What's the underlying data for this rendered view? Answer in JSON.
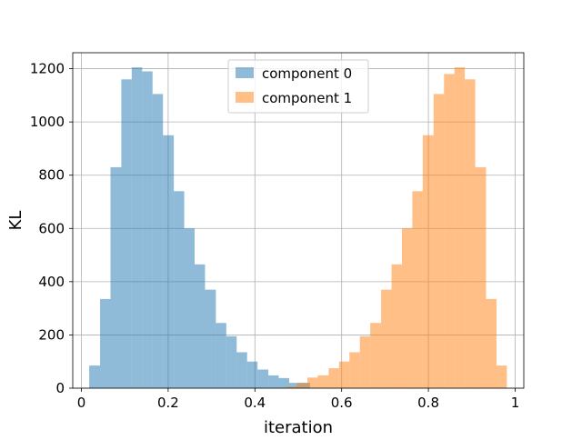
{
  "chart_data": {
    "type": "bar",
    "title": "",
    "xlabel": "iteration",
    "ylabel": "KL",
    "xlim": [
      -0.02,
      1.02
    ],
    "ylim": [
      0,
      1260
    ],
    "grid": true,
    "legend_position": "top-center",
    "xticks": [
      0,
      0.2,
      0.4,
      0.6,
      0.8,
      1
    ],
    "xtick_labels": [
      "0",
      "0.2",
      "0.4",
      "0.6",
      "0.8",
      "1"
    ],
    "yticks": [
      0,
      200,
      400,
      600,
      800,
      1000,
      1200
    ],
    "ytick_labels": [
      "0",
      "200",
      "400",
      "600",
      "800",
      "1000",
      "1200"
    ],
    "series": [
      {
        "name": "component 0",
        "color": "#1f77b4",
        "alpha": 0.5,
        "bins": [
          {
            "x0": 0.018,
            "x1": 0.043,
            "y": 85
          },
          {
            "x0": 0.043,
            "x1": 0.067,
            "y": 335
          },
          {
            "x0": 0.067,
            "x1": 0.092,
            "y": 830
          },
          {
            "x0": 0.092,
            "x1": 0.116,
            "y": 1160
          },
          {
            "x0": 0.116,
            "x1": 0.14,
            "y": 1205
          },
          {
            "x0": 0.14,
            "x1": 0.164,
            "y": 1190
          },
          {
            "x0": 0.164,
            "x1": 0.188,
            "y": 1105
          },
          {
            "x0": 0.188,
            "x1": 0.213,
            "y": 950
          },
          {
            "x0": 0.213,
            "x1": 0.237,
            "y": 740
          },
          {
            "x0": 0.237,
            "x1": 0.261,
            "y": 600
          },
          {
            "x0": 0.261,
            "x1": 0.285,
            "y": 465
          },
          {
            "x0": 0.285,
            "x1": 0.31,
            "y": 370
          },
          {
            "x0": 0.31,
            "x1": 0.334,
            "y": 245
          },
          {
            "x0": 0.334,
            "x1": 0.358,
            "y": 195
          },
          {
            "x0": 0.358,
            "x1": 0.382,
            "y": 135
          },
          {
            "x0": 0.382,
            "x1": 0.406,
            "y": 100
          },
          {
            "x0": 0.406,
            "x1": 0.431,
            "y": 70
          },
          {
            "x0": 0.431,
            "x1": 0.455,
            "y": 48
          },
          {
            "x0": 0.455,
            "x1": 0.479,
            "y": 38
          },
          {
            "x0": 0.479,
            "x1": 0.503,
            "y": 20
          },
          {
            "x0": 0.503,
            "x1": 0.527,
            "y": 20
          }
        ]
      },
      {
        "name": "component 1",
        "color": "#ff7f0e",
        "alpha": 0.5,
        "bins": [
          {
            "x0": 0.473,
            "x1": 0.497,
            "y": 6
          },
          {
            "x0": 0.497,
            "x1": 0.521,
            "y": 20
          },
          {
            "x0": 0.521,
            "x1": 0.545,
            "y": 40
          },
          {
            "x0": 0.545,
            "x1": 0.57,
            "y": 48
          },
          {
            "x0": 0.57,
            "x1": 0.594,
            "y": 75
          },
          {
            "x0": 0.594,
            "x1": 0.618,
            "y": 100
          },
          {
            "x0": 0.618,
            "x1": 0.642,
            "y": 135
          },
          {
            "x0": 0.642,
            "x1": 0.666,
            "y": 195
          },
          {
            "x0": 0.666,
            "x1": 0.691,
            "y": 245
          },
          {
            "x0": 0.691,
            "x1": 0.715,
            "y": 370
          },
          {
            "x0": 0.715,
            "x1": 0.739,
            "y": 465
          },
          {
            "x0": 0.739,
            "x1": 0.763,
            "y": 600
          },
          {
            "x0": 0.763,
            "x1": 0.787,
            "y": 740
          },
          {
            "x0": 0.787,
            "x1": 0.812,
            "y": 950
          },
          {
            "x0": 0.812,
            "x1": 0.836,
            "y": 1105
          },
          {
            "x0": 0.836,
            "x1": 0.86,
            "y": 1180
          },
          {
            "x0": 0.86,
            "x1": 0.884,
            "y": 1205
          },
          {
            "x0": 0.884,
            "x1": 0.908,
            "y": 1160
          },
          {
            "x0": 0.908,
            "x1": 0.933,
            "y": 830
          },
          {
            "x0": 0.933,
            "x1": 0.957,
            "y": 335
          },
          {
            "x0": 0.957,
            "x1": 0.981,
            "y": 85
          }
        ]
      }
    ]
  }
}
